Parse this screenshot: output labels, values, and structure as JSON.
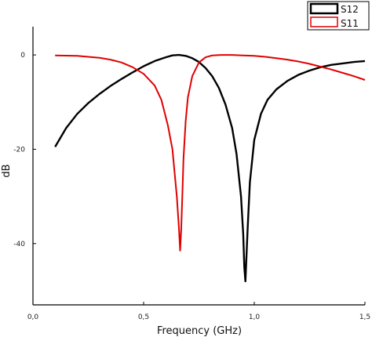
{
  "chart_data": {
    "type": "line",
    "title": "",
    "xlabel": "Frequency (GHz)",
    "ylabel": "dB",
    "xlim": [
      0.0,
      1.5
    ],
    "ylim": [
      -53,
      6
    ],
    "x_ticks": [
      0.0,
      0.5,
      1.0,
      1.5
    ],
    "x_tick_labels": [
      "0,0",
      "0,5",
      "1,0",
      "1,5"
    ],
    "y_ticks": [
      0,
      -20,
      -40
    ],
    "y_tick_labels": [
      "0",
      "-20",
      "-40"
    ],
    "grid": false,
    "legend_position": "top-right",
    "series": [
      {
        "name": "S12",
        "color": "#000000",
        "x": [
          0.1,
          0.15,
          0.2,
          0.25,
          0.3,
          0.35,
          0.4,
          0.45,
          0.5,
          0.55,
          0.6,
          0.63,
          0.66,
          0.69,
          0.72,
          0.75,
          0.78,
          0.81,
          0.84,
          0.87,
          0.9,
          0.92,
          0.94,
          0.95,
          0.955,
          0.96,
          0.97,
          0.98,
          1.0,
          1.03,
          1.06,
          1.1,
          1.15,
          1.2,
          1.25,
          1.3,
          1.35,
          1.4,
          1.45,
          1.5
        ],
        "y": [
          -19.5,
          -15.5,
          -12.5,
          -10.2,
          -8.3,
          -6.6,
          -5.1,
          -3.7,
          -2.4,
          -1.3,
          -0.5,
          -0.1,
          0.0,
          -0.2,
          -0.7,
          -1.5,
          -2.8,
          -4.5,
          -7.0,
          -10.5,
          -15.5,
          -21.0,
          -30.0,
          -38.0,
          -45.0,
          -48.0,
          -37.0,
          -27.0,
          -18.0,
          -12.5,
          -9.5,
          -7.3,
          -5.5,
          -4.2,
          -3.3,
          -2.6,
          -2.1,
          -1.8,
          -1.5,
          -1.3
        ]
      },
      {
        "name": "S11",
        "color": "#e00000",
        "x": [
          0.1,
          0.2,
          0.3,
          0.35,
          0.4,
          0.45,
          0.5,
          0.55,
          0.58,
          0.61,
          0.63,
          0.65,
          0.66,
          0.665,
          0.67,
          0.675,
          0.68,
          0.69,
          0.7,
          0.72,
          0.75,
          0.78,
          0.81,
          0.85,
          0.9,
          0.95,
          1.0,
          1.05,
          1.1,
          1.15,
          1.2,
          1.25,
          1.3,
          1.35,
          1.4,
          1.45,
          1.5
        ],
        "y": [
          -0.1,
          -0.2,
          -0.6,
          -1.0,
          -1.6,
          -2.6,
          -4.0,
          -6.5,
          -9.5,
          -15.0,
          -20.0,
          -30.0,
          -37.0,
          -41.5,
          -37.0,
          -30.0,
          -22.0,
          -14.0,
          -9.0,
          -4.5,
          -1.6,
          -0.5,
          -0.1,
          0.0,
          0.0,
          -0.1,
          -0.2,
          -0.4,
          -0.7,
          -1.0,
          -1.4,
          -1.9,
          -2.5,
          -3.1,
          -3.8,
          -4.5,
          -5.3
        ]
      }
    ]
  }
}
